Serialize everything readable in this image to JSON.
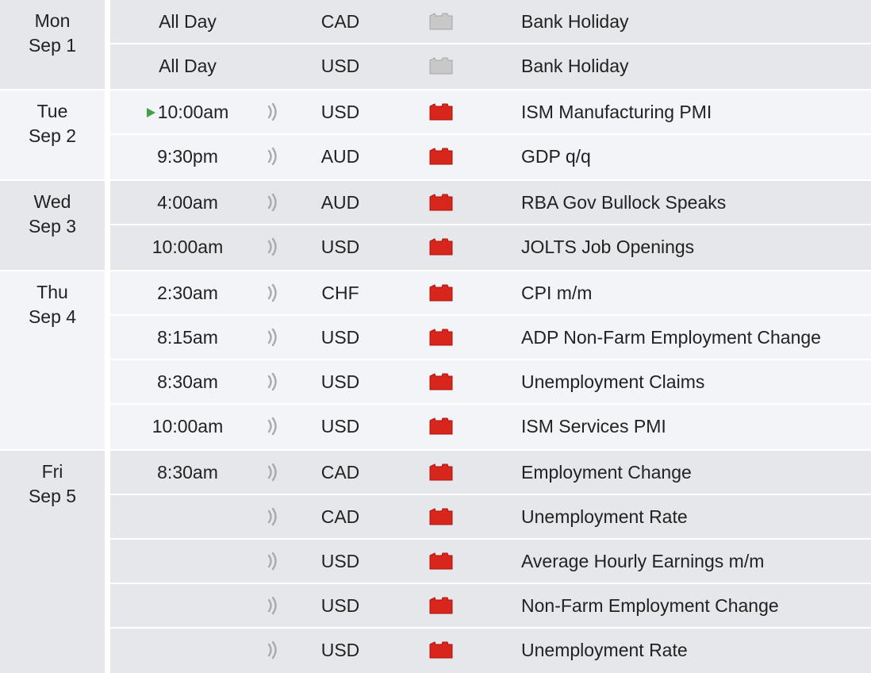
{
  "colors": {
    "row_gray": "#e6e7eb",
    "row_light": "#f3f4f8",
    "impact_high": "#d9261c",
    "impact_holiday": "#c8c8c8",
    "next_marker": "#43a047",
    "sound_icon": "#a9aab0"
  },
  "days": [
    {
      "weekday": "Mon",
      "date": "Sep 1",
      "shade": "gray",
      "events": [
        {
          "time": "All Day",
          "sound": false,
          "currency": "CAD",
          "impact": "holiday",
          "title": "Bank Holiday"
        },
        {
          "time": "All Day",
          "sound": false,
          "currency": "USD",
          "impact": "holiday",
          "title": "Bank Holiday"
        }
      ]
    },
    {
      "weekday": "Tue",
      "date": "Sep 2",
      "shade": "light",
      "events": [
        {
          "time": "10:00am",
          "next": true,
          "sound": true,
          "currency": "USD",
          "impact": "high",
          "title": "ISM Manufacturing PMI"
        },
        {
          "time": "9:30pm",
          "sound": true,
          "currency": "AUD",
          "impact": "high",
          "title": "GDP q/q"
        }
      ]
    },
    {
      "weekday": "Wed",
      "date": "Sep 3",
      "shade": "gray",
      "events": [
        {
          "time": "4:00am",
          "sound": true,
          "currency": "AUD",
          "impact": "high",
          "title": "RBA Gov Bullock Speaks"
        },
        {
          "time": "10:00am",
          "sound": true,
          "currency": "USD",
          "impact": "high",
          "title": "JOLTS Job Openings"
        }
      ]
    },
    {
      "weekday": "Thu",
      "date": "Sep 4",
      "shade": "light",
      "events": [
        {
          "time": "2:30am",
          "sound": true,
          "currency": "CHF",
          "impact": "high",
          "title": "CPI m/m"
        },
        {
          "time": "8:15am",
          "sound": true,
          "currency": "USD",
          "impact": "high",
          "title": "ADP Non-Farm Employment Change"
        },
        {
          "time": "8:30am",
          "sound": true,
          "currency": "USD",
          "impact": "high",
          "title": "Unemployment Claims"
        },
        {
          "time": "10:00am",
          "sound": true,
          "currency": "USD",
          "impact": "high",
          "title": "ISM Services PMI"
        }
      ]
    },
    {
      "weekday": "Fri",
      "date": "Sep 5",
      "shade": "gray",
      "events": [
        {
          "time": "8:30am",
          "sound": true,
          "currency": "CAD",
          "impact": "high",
          "title": "Employment Change"
        },
        {
          "time": "",
          "sound": true,
          "currency": "CAD",
          "impact": "high",
          "title": "Unemployment Rate"
        },
        {
          "time": "",
          "sound": true,
          "currency": "USD",
          "impact": "high",
          "title": "Average Hourly Earnings m/m"
        },
        {
          "time": "",
          "sound": true,
          "currency": "USD",
          "impact": "high",
          "title": "Non-Farm Employment Change"
        },
        {
          "time": "",
          "sound": true,
          "currency": "USD",
          "impact": "high",
          "title": "Unemployment Rate"
        }
      ]
    }
  ]
}
